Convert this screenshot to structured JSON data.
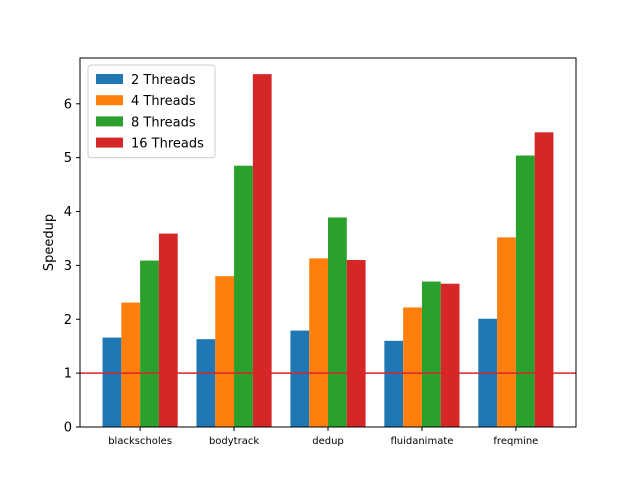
{
  "chart_data": {
    "type": "bar",
    "title": "",
    "xlabel": "",
    "ylabel": "Speedup",
    "categories": [
      "blackscholes",
      "bodytrack",
      "dedup",
      "fluidanimate",
      "freqmine"
    ],
    "series": [
      {
        "name": "2 Threads",
        "color": "#1f77b4",
        "values": [
          1.66,
          1.63,
          1.79,
          1.6,
          2.01
        ]
      },
      {
        "name": "4 Threads",
        "color": "#ff7f0e",
        "values": [
          2.31,
          2.8,
          3.13,
          2.22,
          3.52
        ]
      },
      {
        "name": "8 Threads",
        "color": "#2ca02c",
        "values": [
          3.09,
          4.85,
          3.89,
          2.7,
          5.04
        ]
      },
      {
        "name": "16 Threads",
        "color": "#d62728",
        "values": [
          3.59,
          6.55,
          3.1,
          2.66,
          5.47
        ]
      }
    ],
    "ylim": [
      0,
      6.85
    ],
    "yticks": [
      0,
      1,
      2,
      3,
      4,
      5,
      6
    ],
    "reference_line": {
      "y": 1,
      "color": "#d62728"
    },
    "grid": false,
    "legend_position": "top-left"
  }
}
